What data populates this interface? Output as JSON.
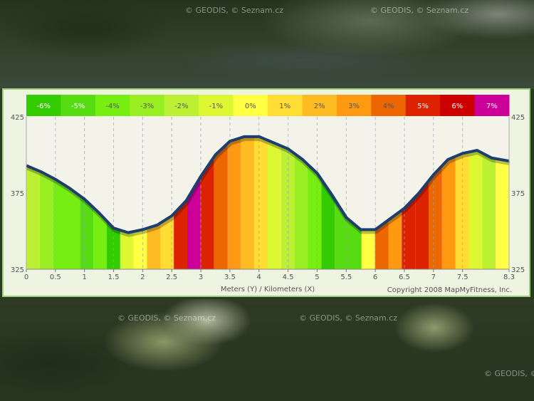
{
  "watermarks": {
    "top": [
      "© GEODIS, © Seznam.cz",
      "© GEODIS, © Seznam.cz"
    ],
    "bottom": [
      "© GEODIS, © Seznam.cz",
      "© GEODIS, © Seznam.cz",
      "© GEODIS, © Seznam.cz"
    ]
  },
  "chart_data": {
    "type": "area",
    "title": "",
    "xlabel": "Meters (Y) / Kilometers (X)",
    "ylabel": "",
    "xlim": [
      0,
      8.3
    ],
    "ylim": [
      325,
      425
    ],
    "x_ticks": [
      "0",
      "0.5",
      "1",
      "1.5",
      "2",
      "2.5",
      "3",
      "3.5",
      "4",
      "4.5",
      "5",
      "5.5",
      "6",
      "6.5",
      "7",
      "7.5",
      "8.3"
    ],
    "y_ticks": [
      "325",
      "375",
      "425"
    ],
    "grid": "vertical dashed",
    "copyright": "Copyright 2008 MapMyFitness, Inc.",
    "grade_legend": [
      {
        "label": "-6%",
        "color": "#33cc00"
      },
      {
        "label": "-5%",
        "color": "#55dd11"
      },
      {
        "label": "-4%",
        "color": "#77ee11"
      },
      {
        "label": "-3%",
        "color": "#99ee22"
      },
      {
        "label": "-2%",
        "color": "#bbf033"
      },
      {
        "label": "-1%",
        "color": "#ddf833"
      },
      {
        "label": "0%",
        "color": "#ffff44"
      },
      {
        "label": "1%",
        "color": "#ffdd33"
      },
      {
        "label": "2%",
        "color": "#ffbb22"
      },
      {
        "label": "3%",
        "color": "#ff9911"
      },
      {
        "label": "4%",
        "color": "#ee6600"
      },
      {
        "label": "5%",
        "color": "#dd2200"
      },
      {
        "label": "6%",
        "color": "#cc0000"
      },
      {
        "label": "7%",
        "color": "#cc0099"
      }
    ],
    "profile": {
      "x": [
        0,
        0.25,
        0.5,
        0.75,
        1,
        1.25,
        1.5,
        1.75,
        2,
        2.25,
        2.5,
        2.75,
        3,
        3.25,
        3.5,
        3.75,
        4,
        4.25,
        4.5,
        4.75,
        5,
        5.25,
        5.5,
        5.75,
        6,
        6.25,
        6.5,
        6.75,
        7,
        7.25,
        7.5,
        7.75,
        8,
        8.3
      ],
      "y": [
        393,
        389,
        384,
        378,
        371,
        362,
        352,
        349,
        351,
        354,
        360,
        370,
        386,
        400,
        409,
        412,
        412,
        408,
        404,
        397,
        388,
        374,
        359,
        351,
        351,
        358,
        365,
        375,
        387,
        397,
        401,
        403,
        398,
        396
      ]
    },
    "segment_grades": [
      "-2%",
      "-3%",
      "-4%",
      "-4%",
      "-5%",
      "-4%",
      "-6%",
      "-1%",
      "0%",
      "2%",
      "1%",
      "5%",
      "7%",
      "5%",
      "4%",
      "3%",
      "2%",
      "1%",
      "-1%",
      "-2%",
      "-3%",
      "-4%",
      "-6%",
      "-5%",
      "-5%",
      "0%",
      "4%",
      "3%",
      "5%",
      "5%",
      "4%",
      "3%",
      "1%",
      "-1%",
      "-2%",
      "0%"
    ]
  }
}
